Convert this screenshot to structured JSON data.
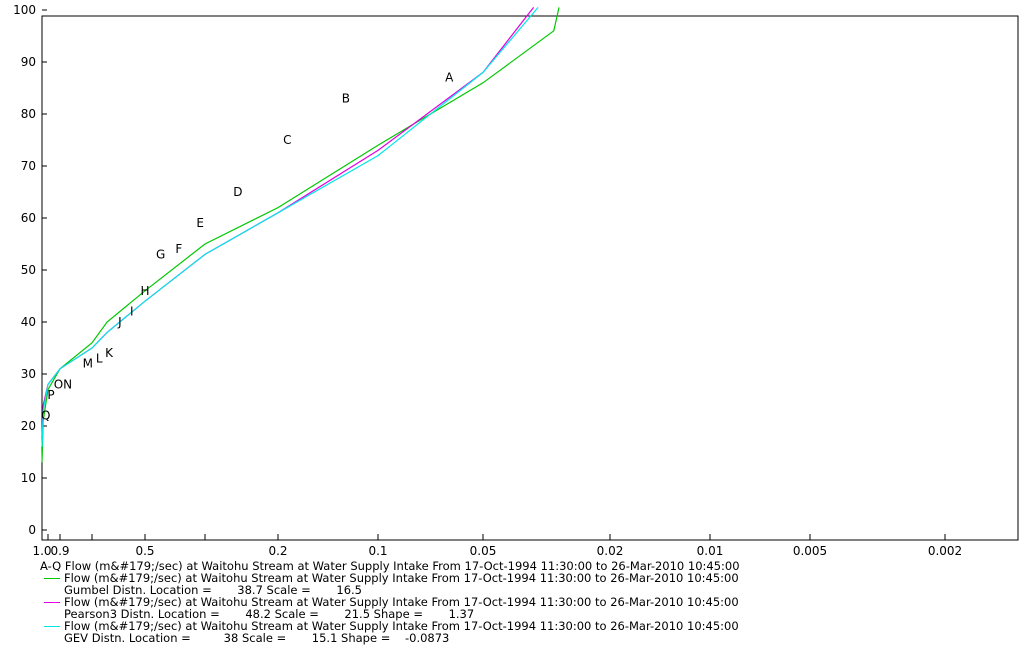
{
  "chart_data": {
    "type": "line",
    "x_scale": "probability (reverse, gumbel/log style)",
    "y_ticks": [
      0,
      10,
      20,
      30,
      40,
      50,
      60,
      70,
      80,
      90,
      100
    ],
    "ylim": [
      0,
      102
    ],
    "x_ticks": [
      {
        "value": 1.0,
        "label": "1.0"
      },
      {
        "value": 0.95,
        "label": ""
      },
      {
        "value": 0.9,
        "label": "0.9"
      },
      {
        "value": 0.8,
        "label": ""
      },
      {
        "value": 0.5,
        "label": "0.5"
      },
      {
        "value": 0.3,
        "label": ""
      },
      {
        "value": 0.2,
        "label": "0.2"
      },
      {
        "value": 0.1,
        "label": "0.1"
      },
      {
        "value": 0.05,
        "label": "0.05"
      },
      {
        "value": 0.02,
        "label": "0.02"
      },
      {
        "value": 0.01,
        "label": "0.01"
      },
      {
        "value": 0.005,
        "label": "0.005"
      },
      {
        "value": 0.002,
        "label": "0.002"
      }
    ],
    "points": [
      {
        "label": "A",
        "p": 0.0625,
        "y": 87
      },
      {
        "label": "B",
        "p": 0.125,
        "y": 83
      },
      {
        "label": "C",
        "p": 0.1875,
        "y": 75
      },
      {
        "label": "D",
        "p": 0.25,
        "y": 65
      },
      {
        "label": "E",
        "p": 0.3125,
        "y": 59
      },
      {
        "label": "F",
        "p": 0.375,
        "y": 54
      },
      {
        "label": "G",
        "p": 0.4375,
        "y": 53
      },
      {
        "label": "H",
        "p": 0.5,
        "y": 46
      },
      {
        "label": "I",
        "p": 0.5625,
        "y": 42
      },
      {
        "label": "J",
        "p": 0.625,
        "y": 40
      },
      {
        "label": "K",
        "p": 0.6875,
        "y": 34
      },
      {
        "label": "L",
        "p": 0.75,
        "y": 33
      },
      {
        "label": "M",
        "p": 0.8125,
        "y": 32
      },
      {
        "label": "N",
        "p": 0.875,
        "y": 28
      },
      {
        "label": "O",
        "p": 0.9063,
        "y": 28
      },
      {
        "label": "P",
        "p": 0.9375,
        "y": 26
      },
      {
        "label": "Q",
        "p": 0.9688,
        "y": 22
      }
    ],
    "series": [
      {
        "name": "Gumbel",
        "color": "#00c800",
        "x": [
          1.0,
          0.99,
          0.95,
          0.9,
          0.8,
          0.7,
          0.5,
          0.3,
          0.2,
          0.1,
          0.05,
          0.03,
          0.0289
        ],
        "y": [
          13,
          21,
          27,
          31,
          36,
          40,
          46,
          55,
          62,
          74,
          86,
          96,
          100.5
        ]
      },
      {
        "name": "Pearson3",
        "color": "#e000e0",
        "x": [
          1.0,
          0.99,
          0.95,
          0.9,
          0.8,
          0.7,
          0.5,
          0.3,
          0.2,
          0.1,
          0.05,
          0.0347
        ],
        "y": [
          18,
          24,
          28,
          31,
          35,
          38,
          44,
          53,
          61,
          73,
          88,
          100.5
        ]
      },
      {
        "name": "GEV",
        "color": "#00e8e8",
        "x": [
          1.0,
          0.99,
          0.95,
          0.9,
          0.8,
          0.7,
          0.5,
          0.3,
          0.2,
          0.1,
          0.05,
          0.0336
        ],
        "y": [
          16,
          23,
          28,
          31,
          35,
          38,
          44,
          53,
          61,
          72,
          88,
          100.5
        ]
      }
    ]
  },
  "legend": {
    "title": "A-Q Flow (m&#179;/sec) at Waitohu Stream at Water Supply Intake From 17-Oct-1994 11:30:00 to 26-Mar-2010 10:45:00",
    "entries": [
      {
        "color": "#00c800",
        "line": "Flow (m&#179;/sec) at Waitohu Stream at Water Supply Intake From 17-Oct-1994 11:30:00 to 26-Mar-2010 10:45:00",
        "params": "Gumbel Distn. Location =       38.7 Scale =       16.5"
      },
      {
        "color": "#e000e0",
        "line": "Flow (m&#179;/sec) at Waitohu Stream at Water Supply Intake From 17-Oct-1994 11:30:00 to 26-Mar-2010 10:45:00",
        "params": "Pearson3 Distn. Location =       48.2 Scale =       21.5 Shape =       1.37"
      },
      {
        "color": "#00e8e8",
        "line": "Flow (m&#179;/sec) at Waitohu Stream at Water Supply Intake From 17-Oct-1994 11:30:00 to 26-Mar-2010 10:45:00",
        "params": "GEV Distn. Location =         38 Scale =       15.1 Shape =    -0.0873"
      }
    ]
  }
}
